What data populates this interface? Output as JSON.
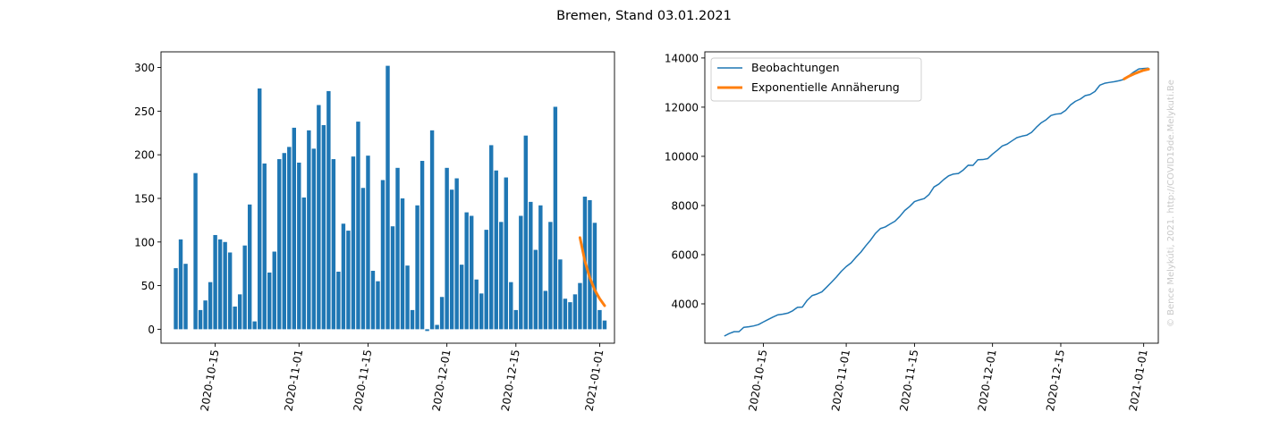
{
  "figure": {
    "title": "Bremen, Stand 03.01.2021",
    "watermark": "© Bence Melykúti, 2021. http://COVID19de.Melykuti.Be"
  },
  "colors": {
    "observed": "#1f77b4",
    "fit": "#ff7f0e"
  },
  "chart_data": [
    {
      "type": "bar",
      "title": "",
      "xlabel": "",
      "ylabel": "",
      "x_start_date": "2020-10-07",
      "x_end_date": "2021-01-02",
      "xlim_dates": [
        "2020-10-04",
        "2021-01-04"
      ],
      "ylim": [
        -16,
        318
      ],
      "yticks": [
        0,
        50,
        100,
        150,
        200,
        250,
        300
      ],
      "xticks": [
        "2020-10-15",
        "2020-11-01",
        "2020-11-15",
        "2020-12-01",
        "2020-12-15",
        "2021-01-01"
      ],
      "values": [
        70,
        103,
        75,
        0,
        179,
        22,
        33,
        54,
        108,
        103,
        100,
        88,
        26,
        40,
        96,
        143,
        9,
        276,
        190,
        65,
        89,
        195,
        202,
        209,
        231,
        191,
        151,
        228,
        207,
        257,
        234,
        273,
        195,
        66,
        121,
        113,
        198,
        238,
        162,
        199,
        67,
        55,
        171,
        302,
        118,
        185,
        150,
        73,
        22,
        142,
        193,
        -2,
        228,
        5,
        37,
        185,
        160,
        173,
        74,
        134,
        130,
        57,
        41,
        114,
        211,
        182,
        123,
        174,
        54,
        22,
        130,
        222,
        146,
        91,
        142,
        44,
        123,
        255,
        80,
        35,
        31,
        40,
        53,
        152,
        148,
        122,
        22,
        10
      ],
      "series": [
        {
          "name": "",
          "kind": "bar",
          "color": "#1f77b4"
        },
        {
          "name": "",
          "kind": "line",
          "color": "#ff7f0e",
          "x": [
            "2020-12-28",
            "2020-12-29",
            "2020-12-30",
            "2020-12-31",
            "2021-01-01",
            "2021-01-02"
          ],
          "values": [
            105,
            78,
            59,
            45,
            35,
            27
          ]
        }
      ],
      "grid": false,
      "legend": "none"
    },
    {
      "type": "line",
      "title": "",
      "xlabel": "",
      "ylabel": "",
      "xlim_dates": [
        "2020-10-03",
        "2021-01-04"
      ],
      "ylim": [
        2400,
        14250
      ],
      "yticks": [
        4000,
        6000,
        8000,
        10000,
        12000,
        14000
      ],
      "xticks": [
        "2020-10-15",
        "2020-11-01",
        "2020-11-15",
        "2020-12-01",
        "2020-12-15",
        "2021-01-01"
      ],
      "grid": false,
      "legend": "upper-left",
      "series": [
        {
          "name": "Beobachtungen",
          "color": "#1f77b4",
          "width": 1.5,
          "x_start_date": "2020-10-07",
          "values": []
        },
        {
          "name": "Exponentielle Annäherung",
          "color": "#ff7f0e",
          "width": 3,
          "x": [
            "2020-12-28",
            "2020-12-29",
            "2020-12-30",
            "2020-12-31",
            "2021-01-01",
            "2021-01-02"
          ],
          "values": [
            13150,
            13260,
            13350,
            13430,
            13500,
            13545
          ]
        }
      ]
    }
  ]
}
